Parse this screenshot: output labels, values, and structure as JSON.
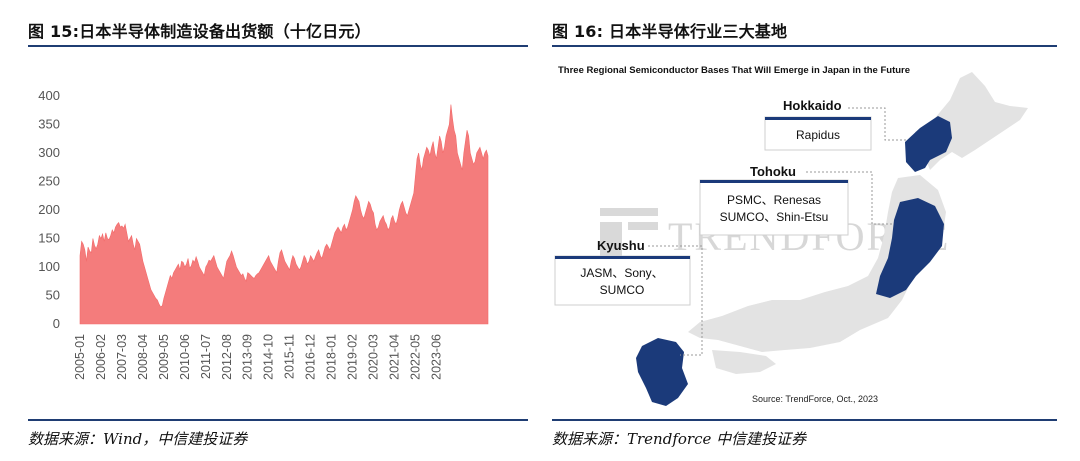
{
  "left_figure": {
    "title": "图 15:日本半导体制造设备出货额（十亿日元）",
    "source": "数据来源：Wind，中信建投证券"
  },
  "right_figure": {
    "title": "图 16:  日本半导体行业三大基地",
    "source": "数据来源：Trendforce 中信建投证券",
    "map": {
      "title": "Three Regional Semiconductor Bases That Will Emerge in Japan in the Future",
      "watermark": "TRENDFORCE",
      "source_note": "Source: TrendForce, Oct., 2023",
      "callouts": [
        {
          "region": "Hokkaido",
          "lines": [
            "Rapidus"
          ]
        },
        {
          "region": "Tohoku",
          "lines": [
            "PSMC、Renesas",
            "SUMCO、Shin-Etsu"
          ]
        },
        {
          "region": "Kyushu",
          "lines": [
            "JASM、Sony、",
            "SUMCO"
          ]
        }
      ],
      "colors": {
        "highlight": "#1b3a7a",
        "land": "#e3e3e3",
        "leader": "#9a9a9a"
      }
    }
  },
  "chart_data": {
    "type": "area",
    "title": "日本半导体制造设备出货额（十亿日元）",
    "xlabel": "",
    "ylabel": "",
    "ylim": [
      0,
      400
    ],
    "yticks": [
      0,
      50,
      100,
      150,
      200,
      250,
      300,
      350,
      400
    ],
    "color": "#f47c7c",
    "grid": false,
    "x_tick_labels": [
      "2005-01",
      "2006-02",
      "2007-03",
      "2008-04",
      "2009-05",
      "2010-06",
      "2011-07",
      "2012-08",
      "2013-09",
      "2014-10",
      "2015-11",
      "2016-12",
      "2018-01",
      "2019-02",
      "2020-03",
      "2021-04",
      "2022-05",
      "2023-06"
    ],
    "x_start": "2005-01",
    "frequency": "monthly",
    "series": [
      {
        "values": [
          120,
          145,
          140,
          130,
          110,
          135,
          128,
          125,
          150,
          138,
          132,
          140,
          155,
          150,
          158,
          145,
          160,
          150,
          148,
          155,
          165,
          160,
          170,
          175,
          178,
          170,
          172,
          168,
          175,
          160,
          145,
          150,
          155,
          140,
          130,
          150,
          145,
          140,
          125,
          110,
          100,
          90,
          80,
          70,
          60,
          55,
          50,
          45,
          42,
          35,
          30,
          32,
          45,
          55,
          65,
          75,
          85,
          80,
          90,
          95,
          100,
          105,
          95,
          110,
          108,
          100,
          105,
          115,
          98,
          102,
          112,
          108,
          118,
          110,
          100,
          95,
          90,
          85,
          100,
          105,
          112,
          110,
          115,
          120,
          110,
          100,
          95,
          90,
          85,
          80,
          95,
          110,
          115,
          120,
          128,
          120,
          110,
          100,
          95,
          90,
          85,
          88,
          80,
          75,
          90,
          88,
          85,
          82,
          80,
          85,
          88,
          90,
          95,
          100,
          105,
          110,
          115,
          120,
          110,
          105,
          100,
          95,
          90,
          110,
          125,
          130,
          120,
          110,
          105,
          100,
          95,
          110,
          120,
          115,
          105,
          100,
          95,
          100,
          110,
          120,
          115,
          105,
          110,
          120,
          115,
          110,
          118,
          125,
          130,
          120,
          115,
          125,
          135,
          140,
          135,
          130,
          140,
          150,
          160,
          165,
          170,
          165,
          160,
          170,
          175,
          165,
          170,
          180,
          190,
          200,
          215,
          225,
          220,
          215,
          200,
          190,
          185,
          195,
          205,
          215,
          210,
          200,
          195,
          175,
          165,
          170,
          180,
          185,
          190,
          180,
          175,
          165,
          170,
          185,
          190,
          180,
          175,
          185,
          200,
          210,
          215,
          205,
          195,
          190,
          200,
          210,
          220,
          230,
          260,
          290,
          300,
          280,
          270,
          290,
          300,
          310,
          305,
          295,
          310,
          320,
          300,
          290,
          310,
          330,
          320,
          300,
          310,
          330,
          340,
          350,
          385,
          360,
          340,
          330,
          300,
          290,
          280,
          270,
          300,
          320,
          340,
          330,
          300,
          290,
          280,
          285,
          300,
          305,
          310,
          300,
          290,
          300,
          305,
          295
        ]
      }
    ]
  }
}
